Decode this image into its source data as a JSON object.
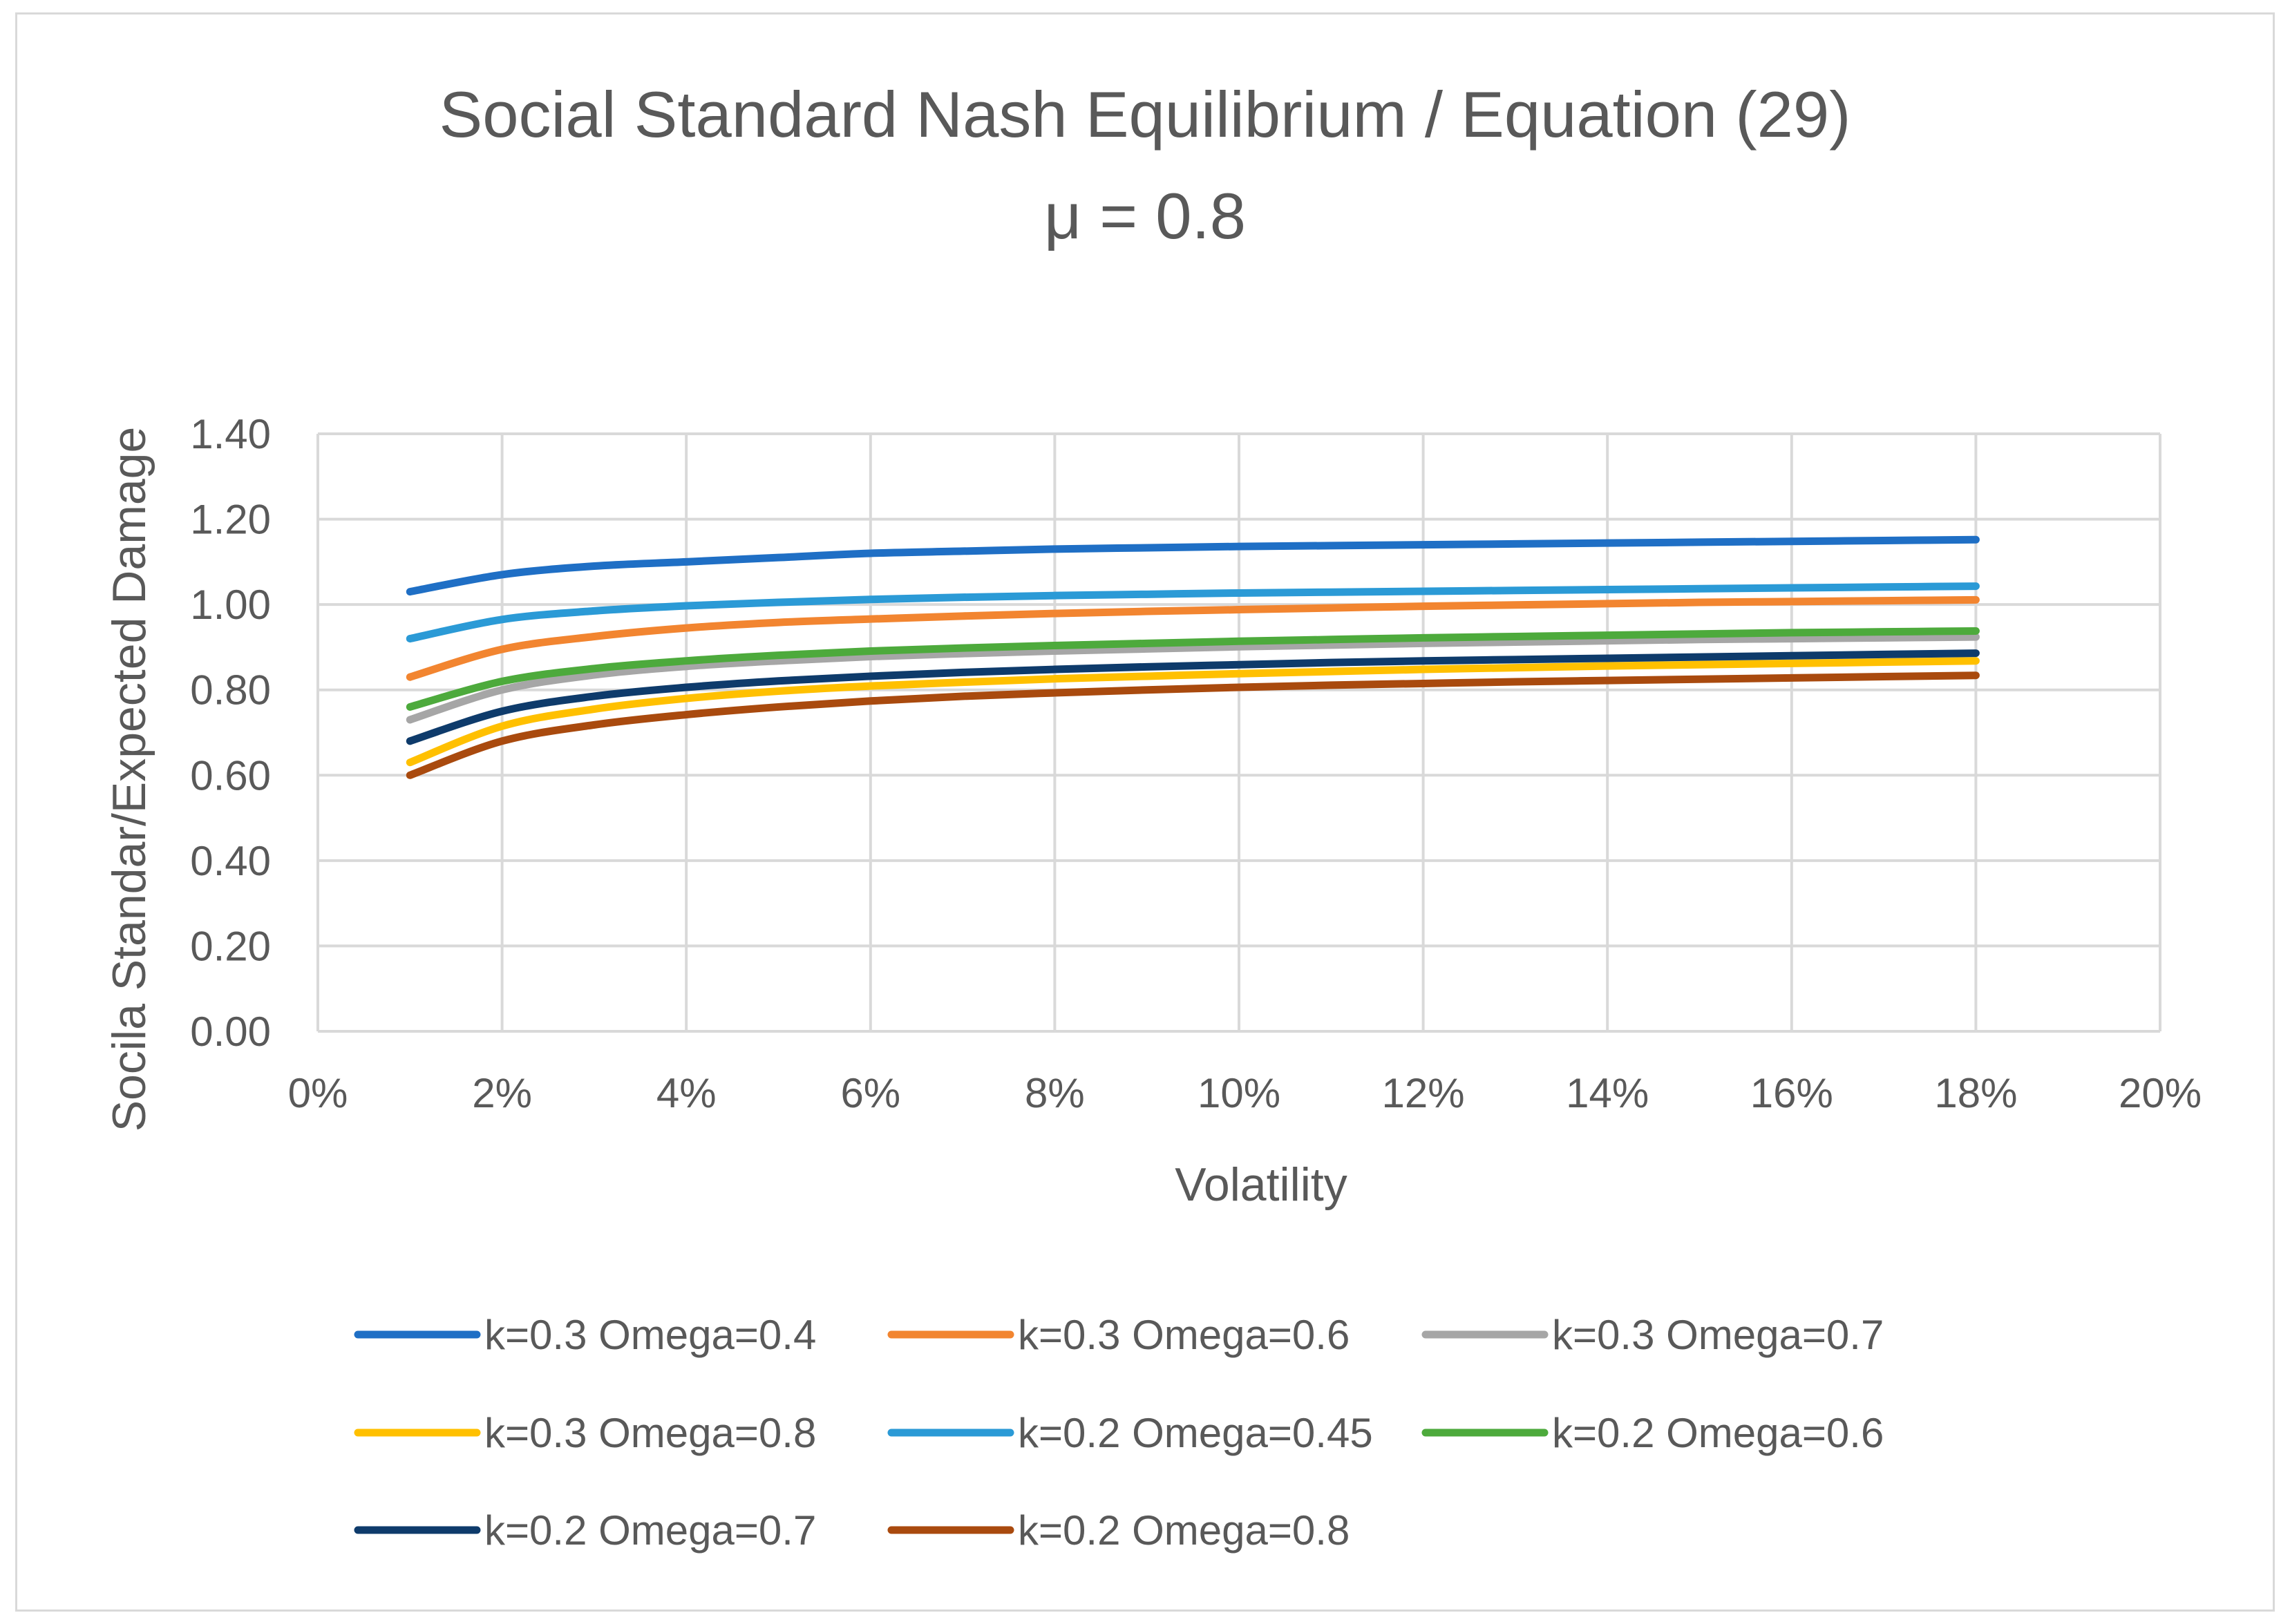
{
  "chart_data": {
    "type": "line",
    "title": "Social Standard Nash Equilibrium / Equation (29)",
    "subtitle": "μ = 0.8",
    "xlabel": "Volatility",
    "ylabel": "Socila Standar/Expected Damage",
    "xlim": [
      0,
      0.2
    ],
    "ylim": [
      0,
      1.4
    ],
    "x_ticks": [
      0,
      0.02,
      0.04,
      0.06,
      0.08,
      0.1,
      0.12,
      0.14,
      0.16,
      0.18,
      0.2
    ],
    "x_tick_labels": [
      "0%",
      "2%",
      "4%",
      "6%",
      "8%",
      "10%",
      "12%",
      "14%",
      "16%",
      "18%",
      "20%"
    ],
    "y_ticks": [
      0,
      0.2,
      0.4,
      0.6,
      0.8,
      1.0,
      1.2,
      1.4
    ],
    "y_tick_labels": [
      "0.00",
      "0.20",
      "0.40",
      "0.60",
      "0.80",
      "1.00",
      "1.20",
      "1.40"
    ],
    "grid": true,
    "legend_position": "bottom",
    "x": [
      0.01,
      0.02,
      0.03,
      0.04,
      0.05,
      0.06,
      0.07,
      0.08,
      0.09,
      0.1,
      0.11,
      0.12,
      0.13,
      0.14,
      0.15,
      0.16,
      0.17,
      0.18
    ],
    "series": [
      {
        "name": "k=0.3 Omega=0.4",
        "color": "#1f6fc5",
        "values": [
          1.03,
          1.07,
          1.09,
          1.1,
          1.11,
          1.12,
          1.125,
          1.13,
          1.133,
          1.136,
          1.138,
          1.14,
          1.142,
          1.144,
          1.146,
          1.148,
          1.15,
          1.152
        ]
      },
      {
        "name": "k=0.3 Omega=0.6",
        "color": "#f28530",
        "values": [
          0.83,
          0.895,
          0.925,
          0.945,
          0.958,
          0.966,
          0.973,
          0.979,
          0.984,
          0.988,
          0.992,
          0.996,
          0.999,
          1.002,
          1.005,
          1.007,
          1.009,
          1.011
        ]
      },
      {
        "name": "k=0.3 Omega=0.7",
        "color": "#a6a6a6",
        "values": [
          0.73,
          0.8,
          0.835,
          0.855,
          0.868,
          0.878,
          0.885,
          0.891,
          0.896,
          0.901,
          0.905,
          0.909,
          0.912,
          0.915,
          0.918,
          0.92,
          0.922,
          0.924
        ]
      },
      {
        "name": "k=0.3 Omega=0.8",
        "color": "#ffc000",
        "values": [
          0.63,
          0.715,
          0.755,
          0.78,
          0.797,
          0.809,
          0.818,
          0.826,
          0.832,
          0.838,
          0.843,
          0.848,
          0.852,
          0.856,
          0.859,
          0.862,
          0.865,
          0.868
        ]
      },
      {
        "name": "k=0.2 Omega=0.45",
        "color": "#2b9ad6",
        "values": [
          0.92,
          0.965,
          0.985,
          0.997,
          1.005,
          1.012,
          1.017,
          1.021,
          1.024,
          1.027,
          1.029,
          1.031,
          1.033,
          1.035,
          1.037,
          1.039,
          1.041,
          1.043
        ]
      },
      {
        "name": "k=0.2 Omega=0.6",
        "color": "#4daa3c",
        "values": [
          0.76,
          0.82,
          0.85,
          0.868,
          0.881,
          0.891,
          0.898,
          0.904,
          0.909,
          0.914,
          0.918,
          0.922,
          0.925,
          0.928,
          0.931,
          0.934,
          0.936,
          0.938
        ]
      },
      {
        "name": "k=0.2 Omega=0.7",
        "color": "#0e3b6b",
        "values": [
          0.68,
          0.75,
          0.785,
          0.806,
          0.821,
          0.832,
          0.841,
          0.848,
          0.854,
          0.859,
          0.864,
          0.868,
          0.871,
          0.874,
          0.877,
          0.88,
          0.883,
          0.886
        ]
      },
      {
        "name": "k=0.2 Omega=0.8",
        "color": "#a94a0e",
        "values": [
          0.6,
          0.68,
          0.718,
          0.742,
          0.76,
          0.774,
          0.785,
          0.793,
          0.8,
          0.806,
          0.811,
          0.815,
          0.819,
          0.822,
          0.825,
          0.828,
          0.831,
          0.834
        ]
      }
    ]
  }
}
